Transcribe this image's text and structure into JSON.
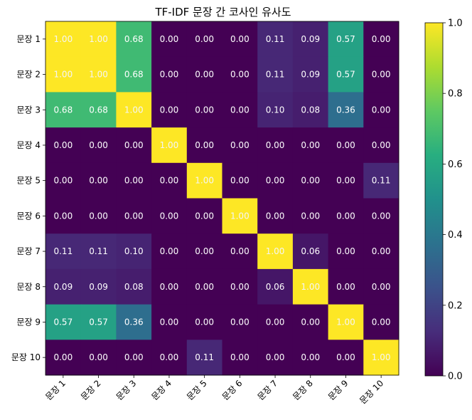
{
  "chart_data": {
    "type": "heatmap",
    "title": "TF-IDF 문장 간 코사인 유사도",
    "xlabel": "",
    "ylabel": "",
    "categories": [
      "문장 1",
      "문장 2",
      "문장 3",
      "문장 4",
      "문장 5",
      "문장 6",
      "문장 7",
      "문장 8",
      "문장 9",
      "문장 10"
    ],
    "values": [
      [
        1.0,
        1.0,
        0.68,
        0.0,
        0.0,
        0.0,
        0.11,
        0.09,
        0.57,
        0.0
      ],
      [
        1.0,
        1.0,
        0.68,
        0.0,
        0.0,
        0.0,
        0.11,
        0.09,
        0.57,
        0.0
      ],
      [
        0.68,
        0.68,
        1.0,
        0.0,
        0.0,
        0.0,
        0.1,
        0.08,
        0.36,
        0.0
      ],
      [
        0.0,
        0.0,
        0.0,
        1.0,
        0.0,
        0.0,
        0.0,
        0.0,
        0.0,
        0.0
      ],
      [
        0.0,
        0.0,
        0.0,
        0.0,
        1.0,
        0.0,
        0.0,
        0.0,
        0.0,
        0.11
      ],
      [
        0.0,
        0.0,
        0.0,
        0.0,
        0.0,
        1.0,
        0.0,
        0.0,
        0.0,
        0.0
      ],
      [
        0.11,
        0.11,
        0.1,
        0.0,
        0.0,
        0.0,
        1.0,
        0.06,
        0.0,
        0.0
      ],
      [
        0.09,
        0.09,
        0.08,
        0.0,
        0.0,
        0.0,
        0.06,
        1.0,
        0.0,
        0.0
      ],
      [
        0.57,
        0.57,
        0.36,
        0.0,
        0.0,
        0.0,
        0.0,
        0.0,
        1.0,
        0.0
      ],
      [
        0.0,
        0.0,
        0.0,
        0.0,
        0.11,
        0.0,
        0.0,
        0.0,
        0.0,
        1.0
      ]
    ],
    "value_format": "0.00",
    "colormap": "viridis",
    "vmin": 0.0,
    "vmax": 1.0,
    "colorbar_ticks": [
      "0.0",
      "0.2",
      "0.4",
      "0.6",
      "0.8",
      "1.0"
    ],
    "colorbar_tick_values": [
      0.0,
      0.2,
      0.4,
      0.6,
      0.8,
      1.0
    ],
    "x_tick_rotation_deg": 45,
    "grid": false,
    "legend": "colorbar-right"
  }
}
